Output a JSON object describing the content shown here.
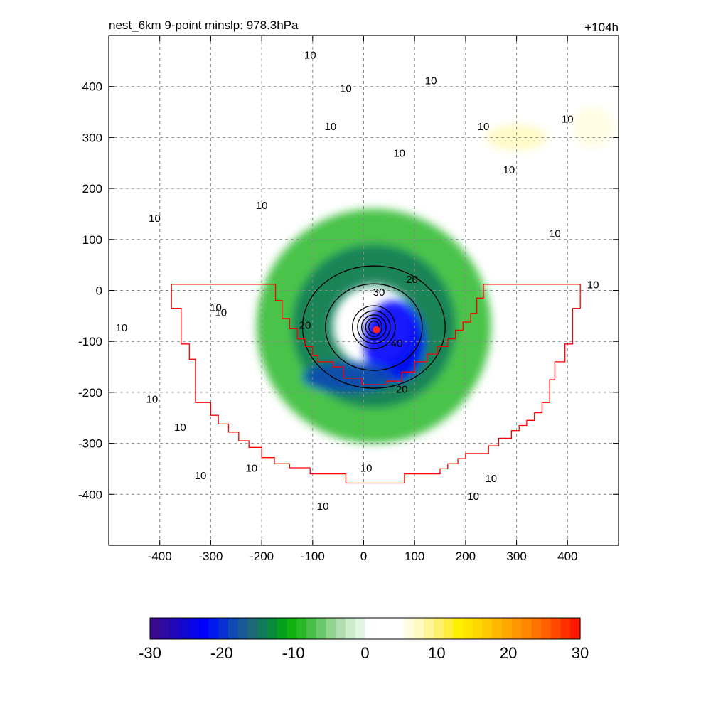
{
  "chart_data": {
    "type": "heatmap",
    "title_left": "nest_6km  9-point minslp: 978.3hPa",
    "title_right": "+104h",
    "xlabel": "",
    "ylabel": "",
    "xlim": [
      -500,
      500
    ],
    "ylim": [
      -500,
      500
    ],
    "x_ticks": [
      -400,
      -300,
      -200,
      -100,
      0,
      100,
      200,
      300,
      400
    ],
    "y_ticks": [
      400,
      300,
      200,
      100,
      0,
      -100,
      -200,
      -300,
      -400
    ],
    "grid": true,
    "fill_field": {
      "description_units": "shaded field",
      "features": [
        {
          "kind": "ring",
          "cx": 20,
          "cy": -70,
          "r_in": 90,
          "r_out": 230,
          "value": -9
        },
        {
          "kind": "ring",
          "cx": 20,
          "cy": -70,
          "r_in": 80,
          "r_out": 160,
          "value": -14
        },
        {
          "kind": "blob",
          "cx": 60,
          "cy": -100,
          "rx": 60,
          "ry": 80,
          "value": -22
        },
        {
          "kind": "blob",
          "cx": -30,
          "cy": -170,
          "rx": 90,
          "ry": 30,
          "value": -18
        },
        {
          "kind": "blob",
          "cx": 300,
          "cy": 300,
          "rx": 60,
          "ry": 25,
          "value": 8
        },
        {
          "kind": "blob",
          "cx": 450,
          "cy": 320,
          "rx": 40,
          "ry": 40,
          "value": 6
        },
        {
          "kind": "blob",
          "cx": 450,
          "cy": -70,
          "rx": 40,
          "ry": 60,
          "value": 5
        },
        {
          "kind": "blob",
          "cx": -240,
          "cy": -390,
          "rx": 30,
          "ry": 25,
          "value": 5
        }
      ]
    },
    "contours": {
      "levels": [
        10,
        20,
        30,
        40
      ],
      "labels": [
        {
          "text": "10",
          "x": -105,
          "y": 460
        },
        {
          "text": "10",
          "x": -35,
          "y": 395
        },
        {
          "text": "10",
          "x": 132,
          "y": 410
        },
        {
          "text": "10",
          "x": -65,
          "y": 320
        },
        {
          "text": "10",
          "x": 70,
          "y": 268
        },
        {
          "text": "10",
          "x": 235,
          "y": 320
        },
        {
          "text": "10",
          "x": 400,
          "y": 335
        },
        {
          "text": "10",
          "x": 285,
          "y": 235
        },
        {
          "text": "10",
          "x": -200,
          "y": 165
        },
        {
          "text": "10",
          "x": -410,
          "y": 140
        },
        {
          "text": "10",
          "x": 375,
          "y": 110
        },
        {
          "text": "10",
          "x": 450,
          "y": 10
        },
        {
          "text": "10",
          "x": -290,
          "y": -35
        },
        {
          "text": "10",
          "x": -280,
          "y": -45
        },
        {
          "text": "10",
          "x": -475,
          "y": -75
        },
        {
          "text": "10",
          "x": -415,
          "y": -215
        },
        {
          "text": "10",
          "x": -360,
          "y": -270
        },
        {
          "text": "10",
          "x": -220,
          "y": -350
        },
        {
          "text": "10",
          "x": -320,
          "y": -365
        },
        {
          "text": "10",
          "x": 5,
          "y": -350
        },
        {
          "text": "10",
          "x": -80,
          "y": -425
        },
        {
          "text": "10",
          "x": 250,
          "y": -370
        },
        {
          "text": "10",
          "x": 215,
          "y": -405
        },
        {
          "text": "20",
          "x": 95,
          "y": 20
        },
        {
          "text": "20",
          "x": -115,
          "y": -70
        },
        {
          "text": "20",
          "x": 75,
          "y": -195
        },
        {
          "text": "30",
          "x": 30,
          "y": -5
        },
        {
          "text": "40",
          "x": 65,
          "y": -105
        }
      ]
    },
    "center_marker": {
      "x": 25,
      "y": -77,
      "color": "#ff2020"
    },
    "red_boundary_color": "#ff0000",
    "red_boundary": [
      [
        -377,
        12
      ],
      [
        -173,
        12
      ],
      [
        -173,
        -20
      ],
      [
        -160,
        -20
      ],
      [
        -160,
        -55
      ],
      [
        -145,
        -55
      ],
      [
        -145,
        -75
      ],
      [
        -130,
        -75
      ],
      [
        -130,
        -95
      ],
      [
        -115,
        -95
      ],
      [
        -115,
        -110
      ],
      [
        -100,
        -110
      ],
      [
        -100,
        -128
      ],
      [
        -90,
        -128
      ],
      [
        -90,
        -140
      ],
      [
        -60,
        -140
      ],
      [
        -60,
        -150
      ],
      [
        -40,
        -150
      ],
      [
        -40,
        -172
      ],
      [
        -3,
        -172
      ],
      [
        -3,
        -185
      ],
      [
        45,
        -185
      ],
      [
        45,
        -178
      ],
      [
        75,
        -178
      ],
      [
        75,
        -160
      ],
      [
        100,
        -160
      ],
      [
        100,
        -140
      ],
      [
        125,
        -140
      ],
      [
        125,
        -125
      ],
      [
        145,
        -125
      ],
      [
        145,
        -110
      ],
      [
        165,
        -110
      ],
      [
        165,
        -95
      ],
      [
        180,
        -95
      ],
      [
        180,
        -78
      ],
      [
        195,
        -78
      ],
      [
        195,
        -62
      ],
      [
        210,
        -62
      ],
      [
        210,
        -45
      ],
      [
        222,
        -45
      ],
      [
        222,
        -15
      ],
      [
        235,
        -15
      ],
      [
        235,
        12
      ],
      [
        425,
        12
      ],
      [
        425,
        -35
      ],
      [
        410,
        -35
      ],
      [
        410,
        -105
      ],
      [
        395,
        -105
      ],
      [
        395,
        -140
      ],
      [
        375,
        -140
      ],
      [
        375,
        -175
      ],
      [
        365,
        -175
      ],
      [
        365,
        -220
      ],
      [
        350,
        -220
      ],
      [
        350,
        -240
      ],
      [
        335,
        -240
      ],
      [
        335,
        -255
      ],
      [
        320,
        -255
      ],
      [
        320,
        -265
      ],
      [
        305,
        -265
      ],
      [
        305,
        -275
      ],
      [
        290,
        -275
      ],
      [
        290,
        -290
      ],
      [
        265,
        -290
      ],
      [
        265,
        -305
      ],
      [
        245,
        -305
      ],
      [
        245,
        -320
      ],
      [
        200,
        -320
      ],
      [
        200,
        -330
      ],
      [
        185,
        -330
      ],
      [
        185,
        -340
      ],
      [
        165,
        -340
      ],
      [
        165,
        -350
      ],
      [
        150,
        -350
      ],
      [
        150,
        -360
      ],
      [
        80,
        -360
      ],
      [
        80,
        -378
      ],
      [
        -35,
        -378
      ],
      [
        -35,
        -360
      ],
      [
        -105,
        -360
      ],
      [
        -105,
        -348
      ],
      [
        -145,
        -348
      ],
      [
        -145,
        -340
      ],
      [
        -175,
        -340
      ],
      [
        -175,
        -328
      ],
      [
        -200,
        -328
      ],
      [
        -200,
        -308
      ],
      [
        -225,
        -308
      ],
      [
        -225,
        -295
      ],
      [
        -245,
        -295
      ],
      [
        -245,
        -278
      ],
      [
        -265,
        -278
      ],
      [
        -265,
        -262
      ],
      [
        -285,
        -262
      ],
      [
        -285,
        -245
      ],
      [
        -300,
        -245
      ],
      [
        -300,
        -220
      ],
      [
        -330,
        -220
      ],
      [
        -330,
        -135
      ],
      [
        -342,
        -135
      ],
      [
        -342,
        -105
      ],
      [
        -358,
        -105
      ],
      [
        -358,
        -35
      ],
      [
        -377,
        -35
      ],
      [
        -377,
        12
      ]
    ],
    "colorbar": {
      "min": -30,
      "max": 30,
      "ticks": [
        -30,
        -20,
        -10,
        0,
        10,
        20,
        30
      ],
      "tick_labels": [
        "-30",
        "-20",
        "-10",
        "0",
        "10",
        "20",
        "30"
      ],
      "colors": [
        "#3a0a8c",
        "#2e0aa0",
        "#1f08b8",
        "#1406d2",
        "#0a05e6",
        "#0000ff",
        "#0019f0",
        "#0a2fd2",
        "#104ab4",
        "#1a5a96",
        "#1c6a78",
        "#127a5a",
        "#0a8a3c",
        "#06a01e",
        "#10b010",
        "#28b828",
        "#48c048",
        "#6cc86c",
        "#90d490",
        "#b0e0b0",
        "#cdeccd",
        "#e2f4e2",
        "#ffffff",
        "#ffffff",
        "#ffffff",
        "#ffffff",
        "#fffde0",
        "#fffac0",
        "#fff59a",
        "#fff070",
        "#ffee40",
        "#fff000",
        "#ffe600",
        "#ffd800",
        "#ffc800",
        "#ffb800",
        "#ffa800",
        "#ff9800",
        "#ff8800",
        "#ff7400",
        "#ff6000",
        "#ff4800",
        "#ff3000",
        "#ff1800"
      ]
    }
  }
}
